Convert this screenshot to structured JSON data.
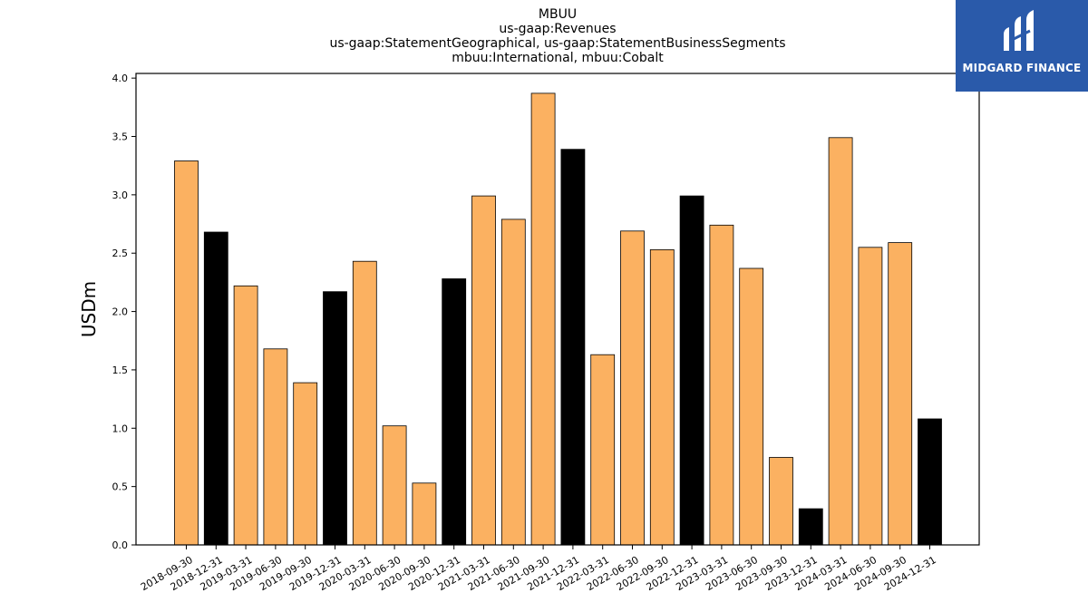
{
  "chart_data": {
    "type": "bar",
    "title_lines": [
      "MBUU",
      "us-gaap:Revenues",
      "us-gaap:StatementGeographical, us-gaap:StatementBusinessSegments",
      "mbuu:International, mbuu:Cobalt"
    ],
    "ylabel": "USDm",
    "xlabel": "",
    "ylim": [
      0,
      4.0
    ],
    "yticks": [
      "0.0",
      "0.5",
      "1.0",
      "1.5",
      "2.0",
      "2.5",
      "3.0",
      "3.5",
      "4.0"
    ],
    "categories": [
      "2018-09-30",
      "2018-12-31",
      "2019-03-31",
      "2019-06-30",
      "2019-09-30",
      "2019-12-31",
      "2020-03-31",
      "2020-06-30",
      "2020-09-30",
      "2020-12-31",
      "2021-03-31",
      "2021-06-30",
      "2021-09-30",
      "2021-12-31",
      "2022-03-31",
      "2022-06-30",
      "2022-09-30",
      "2022-12-31",
      "2023-03-31",
      "2023-06-30",
      "2023-09-30",
      "2023-12-31",
      "2024-03-31",
      "2024-06-30",
      "2024-09-30",
      "2024-12-31"
    ],
    "values": [
      3.29,
      2.68,
      2.22,
      1.68,
      1.39,
      2.17,
      2.43,
      1.02,
      0.53,
      2.28,
      2.99,
      2.79,
      3.87,
      3.39,
      1.63,
      2.69,
      2.53,
      2.99,
      2.74,
      2.37,
      0.75,
      0.31,
      3.49,
      2.55,
      2.59,
      1.08
    ],
    "bar_colors": {
      "quarter": "#fbb161",
      "year_end": "#000000"
    },
    "grid": false,
    "legend": "none"
  },
  "logo": {
    "text": "MIDGARD FINANCE",
    "background": "#2a5aaa"
  }
}
